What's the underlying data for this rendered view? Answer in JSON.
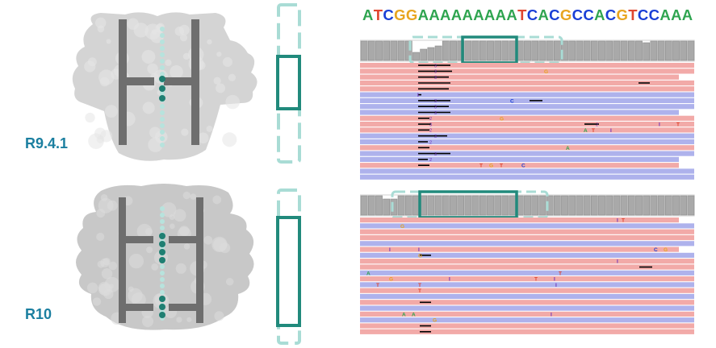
{
  "labels": {
    "top_version": "R9.4.1",
    "bottom_version": "R10"
  },
  "sequence": "ATCGGAAAAAAAAATCACGCCACGTCCAAA",
  "base_colors": {
    "A": "#2ea44f",
    "T": "#e0462f",
    "C": "#1a3fd6",
    "G": "#e8a520"
  },
  "colors": {
    "protein_top": "#d4d4d4",
    "protein_bottom": "#c8c8c8",
    "bar": "#6e6e6e",
    "strand_dot": "#b7e3dd",
    "reader_dot": "#1f7f72",
    "teal": "#218a7c",
    "teal_light": "#a9dcd5",
    "read_forward": "#f2aaa8",
    "read_reverse": "#aeb2ec",
    "coverage": "#a9a9a9"
  },
  "top_panel": {
    "rows": [
      "r",
      "r",
      "r",
      "r",
      "r",
      "b",
      "b",
      "b",
      "b",
      "r",
      "r",
      "r",
      "b",
      "b",
      "r",
      "b",
      "b",
      "r",
      "b",
      "b"
    ],
    "insertions": [
      "3",
      "3",
      "3",
      "3",
      "3",
      "3",
      "2",
      "3",
      "2",
      "2",
      "3",
      "2",
      "3",
      "2",
      "2",
      "3",
      "2",
      "3"
    ],
    "mismatch_letters": [
      "G",
      "I",
      "C",
      "G",
      "I",
      "A",
      "T",
      "I",
      "T",
      "A",
      "T",
      "G",
      "T",
      "C"
    ]
  },
  "bottom_panel": {
    "rows": [
      "r",
      "b",
      "r",
      "r",
      "b",
      "r",
      "b",
      "r",
      "r",
      "b",
      "r",
      "b",
      "r",
      "b",
      "r",
      "b",
      "r",
      "b",
      "r",
      "r"
    ],
    "mismatch_letters": [
      "I",
      "T",
      "G",
      "I",
      "I",
      "G",
      "C",
      "G",
      "I",
      "T",
      "A",
      "G",
      "I",
      "T",
      "I",
      "T",
      "T",
      "I",
      "T",
      "A",
      "A",
      "I",
      "G"
    ]
  }
}
